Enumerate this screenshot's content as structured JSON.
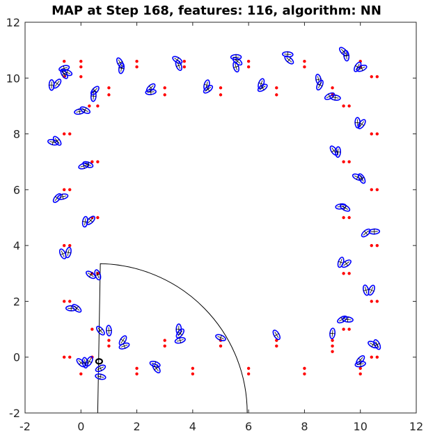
{
  "chart_data": {
    "type": "scatter",
    "title": "MAP at Step 168, features: 116, algorithm: NN",
    "xlabel": "",
    "ylabel": "",
    "xlim": [
      -2,
      12
    ],
    "ylim": [
      -2,
      12
    ],
    "xticks": [
      -2,
      0,
      2,
      4,
      6,
      8,
      10,
      12
    ],
    "yticks": [
      -2,
      0,
      2,
      4,
      6,
      8,
      10,
      12
    ],
    "grid": false,
    "box": true,
    "colors": {
      "ground_truth": "#ff0000",
      "estimate": "#0000ff",
      "robot": "#000000",
      "sensor_range": "#000000",
      "measurement": "#ff0000"
    },
    "series": [
      {
        "role": "ground-truth-landmarks",
        "marker": "dot",
        "points": [
          [
            -0.6,
            10.6
          ],
          [
            -0.6,
            10.05
          ],
          [
            0.0,
            10.6
          ],
          [
            0.0,
            10.4
          ],
          [
            0.0,
            10.05
          ],
          [
            1.0,
            9.65
          ],
          [
            1.0,
            9.4
          ],
          [
            0.3,
            9.0
          ],
          [
            0.6,
            9.0
          ],
          [
            2.0,
            10.6
          ],
          [
            2.0,
            10.4
          ],
          [
            3.0,
            9.65
          ],
          [
            3.0,
            9.4
          ],
          [
            3.7,
            10.6
          ],
          [
            3.7,
            10.4
          ],
          [
            5.0,
            9.65
          ],
          [
            5.0,
            9.4
          ],
          [
            6.0,
            10.6
          ],
          [
            6.0,
            10.4
          ],
          [
            7.0,
            9.65
          ],
          [
            7.0,
            9.4
          ],
          [
            8.0,
            10.6
          ],
          [
            8.0,
            10.4
          ],
          [
            9.0,
            9.65
          ],
          [
            9.0,
            9.4
          ],
          [
            10.0,
            10.6
          ],
          [
            10.0,
            10.4
          ],
          [
            10.4,
            10.05
          ],
          [
            10.6,
            10.05
          ],
          [
            9.4,
            9.0
          ],
          [
            9.6,
            9.0
          ],
          [
            -0.6,
            8.0
          ],
          [
            -0.4,
            8.0
          ],
          [
            10.4,
            8.0
          ],
          [
            10.6,
            8.0
          ],
          [
            0.4,
            7.0
          ],
          [
            0.6,
            7.0
          ],
          [
            9.4,
            7.0
          ],
          [
            9.6,
            7.0
          ],
          [
            -0.6,
            6.0
          ],
          [
            -0.4,
            6.0
          ],
          [
            10.4,
            6.0
          ],
          [
            10.6,
            6.0
          ],
          [
            0.4,
            5.0
          ],
          [
            0.6,
            5.0
          ],
          [
            9.4,
            5.0
          ],
          [
            9.6,
            5.0
          ],
          [
            -0.6,
            4.0
          ],
          [
            -0.4,
            4.0
          ],
          [
            10.4,
            4.0
          ],
          [
            10.6,
            4.0
          ],
          [
            0.4,
            3.0
          ],
          [
            0.6,
            3.0
          ],
          [
            9.4,
            3.0
          ],
          [
            9.6,
            3.0
          ],
          [
            -0.6,
            2.0
          ],
          [
            -0.4,
            2.0
          ],
          [
            10.4,
            2.0
          ],
          [
            10.6,
            2.0
          ],
          [
            9.4,
            1.0
          ],
          [
            9.6,
            1.0
          ],
          [
            -0.6,
            0.0
          ],
          [
            -0.4,
            0.0
          ],
          [
            10.4,
            0.0
          ],
          [
            10.6,
            0.0
          ],
          [
            0.4,
            1.0
          ],
          [
            0.4,
            0.0
          ],
          [
            1.0,
            0.6
          ],
          [
            1.0,
            0.4
          ],
          [
            2.0,
            -0.4
          ],
          [
            2.0,
            -0.6
          ],
          [
            3.0,
            0.6
          ],
          [
            3.0,
            0.4
          ],
          [
            4.0,
            -0.4
          ],
          [
            4.0,
            -0.6
          ],
          [
            5.0,
            0.6
          ],
          [
            5.0,
            0.4
          ],
          [
            6.0,
            -0.4
          ],
          [
            6.0,
            -0.6
          ],
          [
            7.0,
            0.6
          ],
          [
            7.0,
            0.4
          ],
          [
            8.0,
            -0.4
          ],
          [
            8.0,
            -0.6
          ],
          [
            9.0,
            0.6
          ],
          [
            9.0,
            0.4
          ],
          [
            9.0,
            0.2
          ],
          [
            10.0,
            -0.4
          ],
          [
            10.0,
            -0.6
          ],
          [
            0.0,
            -0.6
          ]
        ]
      },
      {
        "role": "estimated-landmarks",
        "marker": "ellipse",
        "points": [
          [
            -1.05,
            9.75
          ],
          [
            -0.85,
            9.8
          ],
          [
            -0.6,
            10.35
          ],
          [
            -0.5,
            10.2
          ],
          [
            -0.6,
            10.15
          ],
          [
            0.45,
            9.35
          ],
          [
            0.5,
            9.55
          ],
          [
            -0.05,
            8.8
          ],
          [
            0.15,
            8.85
          ],
          [
            1.4,
            10.55
          ],
          [
            1.45,
            10.35
          ],
          [
            2.5,
            9.65
          ],
          [
            2.5,
            9.5
          ],
          [
            3.45,
            10.65
          ],
          [
            3.5,
            10.45
          ],
          [
            4.5,
            9.75
          ],
          [
            4.55,
            9.6
          ],
          [
            5.55,
            10.75
          ],
          [
            5.6,
            10.6
          ],
          [
            5.55,
            10.4
          ],
          [
            6.45,
            9.8
          ],
          [
            6.5,
            9.65
          ],
          [
            7.4,
            10.85
          ],
          [
            7.45,
            10.65
          ],
          [
            8.5,
            9.95
          ],
          [
            8.55,
            9.75
          ],
          [
            8.9,
            9.35
          ],
          [
            9.1,
            9.3
          ],
          [
            9.4,
            10.95
          ],
          [
            9.5,
            10.8
          ],
          [
            9.9,
            10.4
          ],
          [
            10.05,
            10.35
          ],
          [
            -1.0,
            7.7
          ],
          [
            -0.85,
            7.75
          ],
          [
            9.9,
            8.4
          ],
          [
            10.05,
            8.35
          ],
          [
            0.1,
            6.85
          ],
          [
            0.25,
            6.9
          ],
          [
            9.05,
            7.4
          ],
          [
            9.2,
            7.35
          ],
          [
            -0.85,
            5.7
          ],
          [
            -0.65,
            5.75
          ],
          [
            9.9,
            6.45
          ],
          [
            10.05,
            6.4
          ],
          [
            0.15,
            4.85
          ],
          [
            0.35,
            4.9
          ],
          [
            9.3,
            5.4
          ],
          [
            9.45,
            5.35
          ],
          [
            -0.65,
            3.7
          ],
          [
            -0.45,
            3.75
          ],
          [
            10.2,
            4.45
          ],
          [
            10.5,
            4.5
          ],
          [
            0.35,
            2.95
          ],
          [
            0.6,
            2.95
          ],
          [
            9.3,
            3.4
          ],
          [
            9.5,
            3.35
          ],
          [
            -0.35,
            1.75
          ],
          [
            -0.15,
            1.75
          ],
          [
            10.2,
            2.4
          ],
          [
            10.4,
            2.4
          ],
          [
            9.35,
            1.35
          ],
          [
            9.55,
            1.35
          ],
          [
            0.0,
            -0.2
          ],
          [
            0.15,
            -0.2
          ],
          [
            0.3,
            -0.15
          ],
          [
            0.7,
            -0.4
          ],
          [
            0.7,
            -0.7
          ],
          [
            0.7,
            0.95
          ],
          [
            1.0,
            0.95
          ],
          [
            1.5,
            0.6
          ],
          [
            1.55,
            0.4
          ],
          [
            2.65,
            -0.25
          ],
          [
            2.7,
            -0.4
          ],
          [
            3.5,
            1.0
          ],
          [
            3.55,
            0.85
          ],
          [
            3.55,
            0.6
          ],
          [
            5.0,
            0.7
          ],
          [
            7.0,
            0.8
          ],
          [
            9.0,
            0.85
          ],
          [
            10.0,
            -0.1
          ],
          [
            10.0,
            -0.25
          ],
          [
            10.45,
            0.45
          ],
          [
            10.6,
            0.45
          ]
        ]
      },
      {
        "role": "robot-pose",
        "marker": "circle",
        "points": [
          [
            0.65,
            -0.15
          ]
        ]
      }
    ],
    "sensor_range": {
      "center": [
        0.6,
        -2.0
      ],
      "radius": 5.35,
      "start_angle_deg": 0,
      "end_angle_deg": 89
    }
  }
}
